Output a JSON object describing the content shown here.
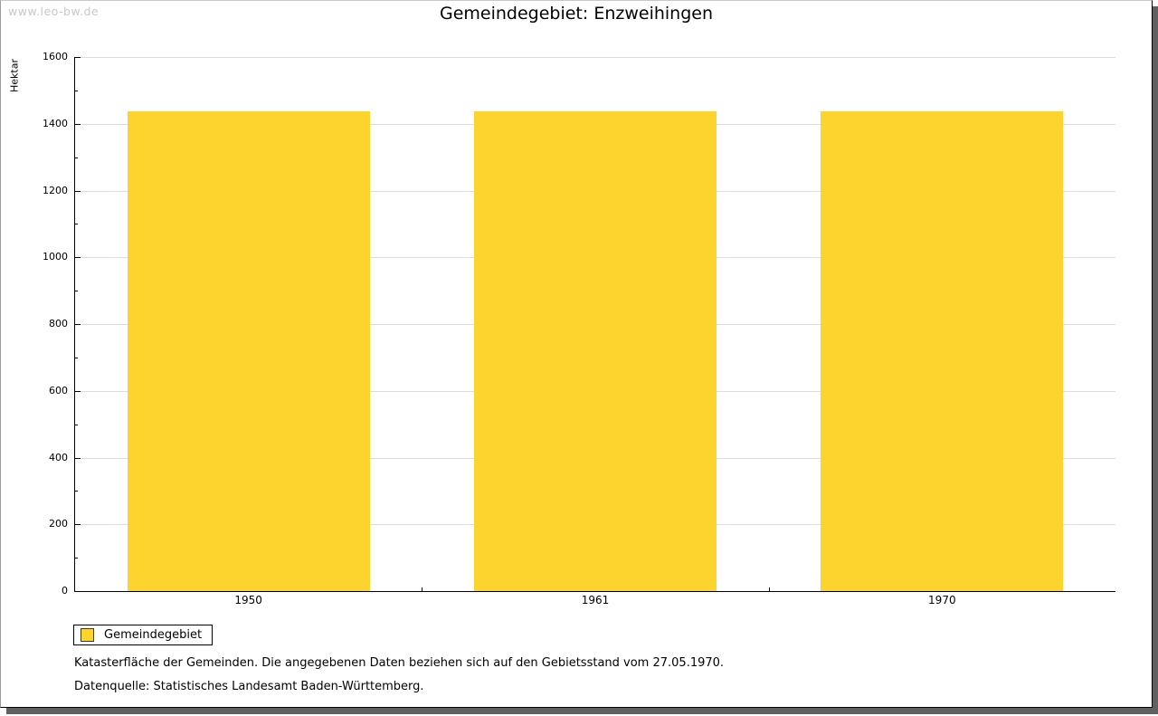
{
  "watermark": "www.leo-bw.de",
  "header": {
    "title": "Gemeindegebiet: Enzweihingen"
  },
  "chart_data": {
    "type": "bar",
    "title": "Gemeindegebiet: Enzweihingen",
    "categories": [
      "1950",
      "1961",
      "1970"
    ],
    "series": [
      {
        "name": "Gemeindegebiet",
        "values": [
          1436,
          1436,
          1436
        ]
      }
    ],
    "xlabel": "",
    "ylabel": "Hektar",
    "ylim": [
      0,
      1600
    ],
    "ytick_step": 200,
    "yminor_step": 100,
    "grid": true,
    "legend_position": "bottom-left",
    "bar_color": "#FDD32D",
    "bar_border_color": "#3a3a3a",
    "gridline_color": "#dcdcdc"
  },
  "legend": {
    "label": "Gemeindegebiet"
  },
  "footnotes": [
    "Katasterfläche der Gemeinden. Die angegebenen Daten beziehen sich auf den Gebietsstand vom 27.05.1970.",
    "Datenquelle: Statistisches Landesamt Baden-Württemberg."
  ],
  "colors": {
    "bar": "#FDD32D",
    "gridline": "#dcdcdc",
    "axis": "#000000",
    "watermark": "#c8c8c8",
    "frame_shadow": "#616161",
    "background": "#ffffff"
  }
}
